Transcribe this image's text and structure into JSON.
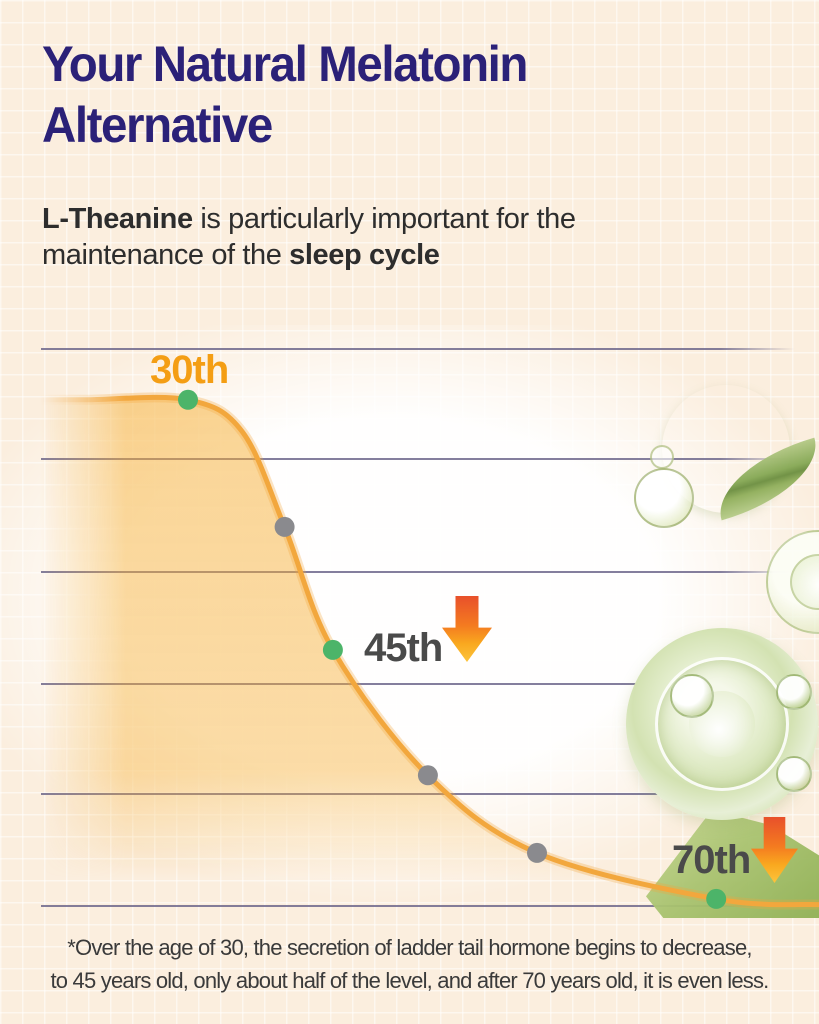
{
  "header": {
    "title_line1": "Your Natural Melatonin",
    "title_line2": "Alternative",
    "subtitle_parts": [
      {
        "text": "L-Theanine",
        "bold": true
      },
      {
        "text": " is particularly important for the maintenance of the ",
        "bold": false
      },
      {
        "text": "sleep cycle",
        "bold": true
      }
    ]
  },
  "chart_data": {
    "type": "area",
    "title": "",
    "xlabel": "",
    "ylabel": "",
    "description": "Sleep hormone secretion declines with age: level at 30, about half by 45, even less after 70",
    "grid": "horizontal-only",
    "gridline_count": 6,
    "milestones": [
      {
        "label": "30th",
        "relative_level": 1.0,
        "marker": "green"
      },
      {
        "label": "45th",
        "relative_level": 0.5,
        "marker": "green"
      },
      {
        "label": "70th",
        "relative_level": 0.1,
        "marker": "green"
      }
    ],
    "curve_points": [
      {
        "x": 0.0,
        "y": 0.104
      },
      {
        "x": 0.06,
        "y": 0.104
      },
      {
        "x": 0.19,
        "y": 0.104,
        "marker": "green",
        "label": "30th"
      },
      {
        "x": 0.26,
        "y": 0.16
      },
      {
        "x": 0.314,
        "y": 0.325,
        "marker": "gray"
      },
      {
        "x": 0.376,
        "y": 0.539,
        "marker": "green",
        "label": "45th"
      },
      {
        "x": 0.498,
        "y": 0.757,
        "marker": "gray"
      },
      {
        "x": 0.638,
        "y": 0.892,
        "marker": "gray"
      },
      {
        "x": 0.868,
        "y": 0.972,
        "marker": "green",
        "label": "70th"
      },
      {
        "x": 1.0,
        "y": 0.982
      }
    ],
    "colors": {
      "title": "#2b2178",
      "curve": "#f2a73d",
      "fill": "#f6ad2f",
      "marker_green": "#4cb469",
      "marker_gray": "#8a8a8e",
      "label_orange": "#f49e14",
      "label_dark": "#4a4a4a",
      "gridline": "#6e688c",
      "arrow_top": "#e8502b",
      "arrow_bottom": "#fcc43c",
      "background": "#fbeede"
    }
  },
  "footnote": {
    "line1": "*Over the age of 30, the secretion of ladder tail hormone begins to decrease,",
    "line2": "to 45 years old, only about half of the level, and after 70 years old, it is even less."
  }
}
